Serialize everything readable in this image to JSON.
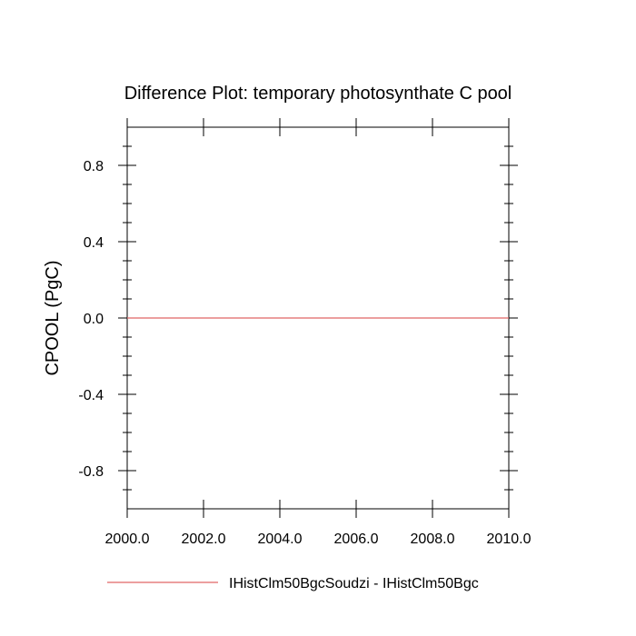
{
  "chart_data": {
    "type": "line",
    "title": "Difference Plot: temporary photosynthate C pool",
    "xlabel": "",
    "ylabel": "CPOOL  (PgC)",
    "xlim": [
      2000,
      2010
    ],
    "ylim": [
      -1,
      1
    ],
    "x_ticks": [
      2000,
      2002,
      2004,
      2006,
      2008,
      2010
    ],
    "x_tick_labels": [
      "2000.0",
      "2002.0",
      "2004.0",
      "2006.0",
      "2008.0",
      "2010.0"
    ],
    "y_ticks": [
      0.8,
      0.4,
      0.0,
      -0.4,
      -0.8
    ],
    "y_tick_labels": [
      "0.8",
      "0.4",
      "0.0",
      "-0.4",
      "-0.8"
    ],
    "grid": false,
    "legend_position": "bottom",
    "series": [
      {
        "name": "IHistClm50BgcSoudzi - IHistClm50Bgc",
        "color": "#e06666",
        "x": [
          2000,
          2001,
          2002,
          2003,
          2004,
          2005,
          2006,
          2007,
          2008,
          2009,
          2010
        ],
        "y": [
          0,
          0,
          0,
          0,
          0,
          0,
          0,
          0,
          0,
          0,
          0
        ]
      }
    ]
  }
}
